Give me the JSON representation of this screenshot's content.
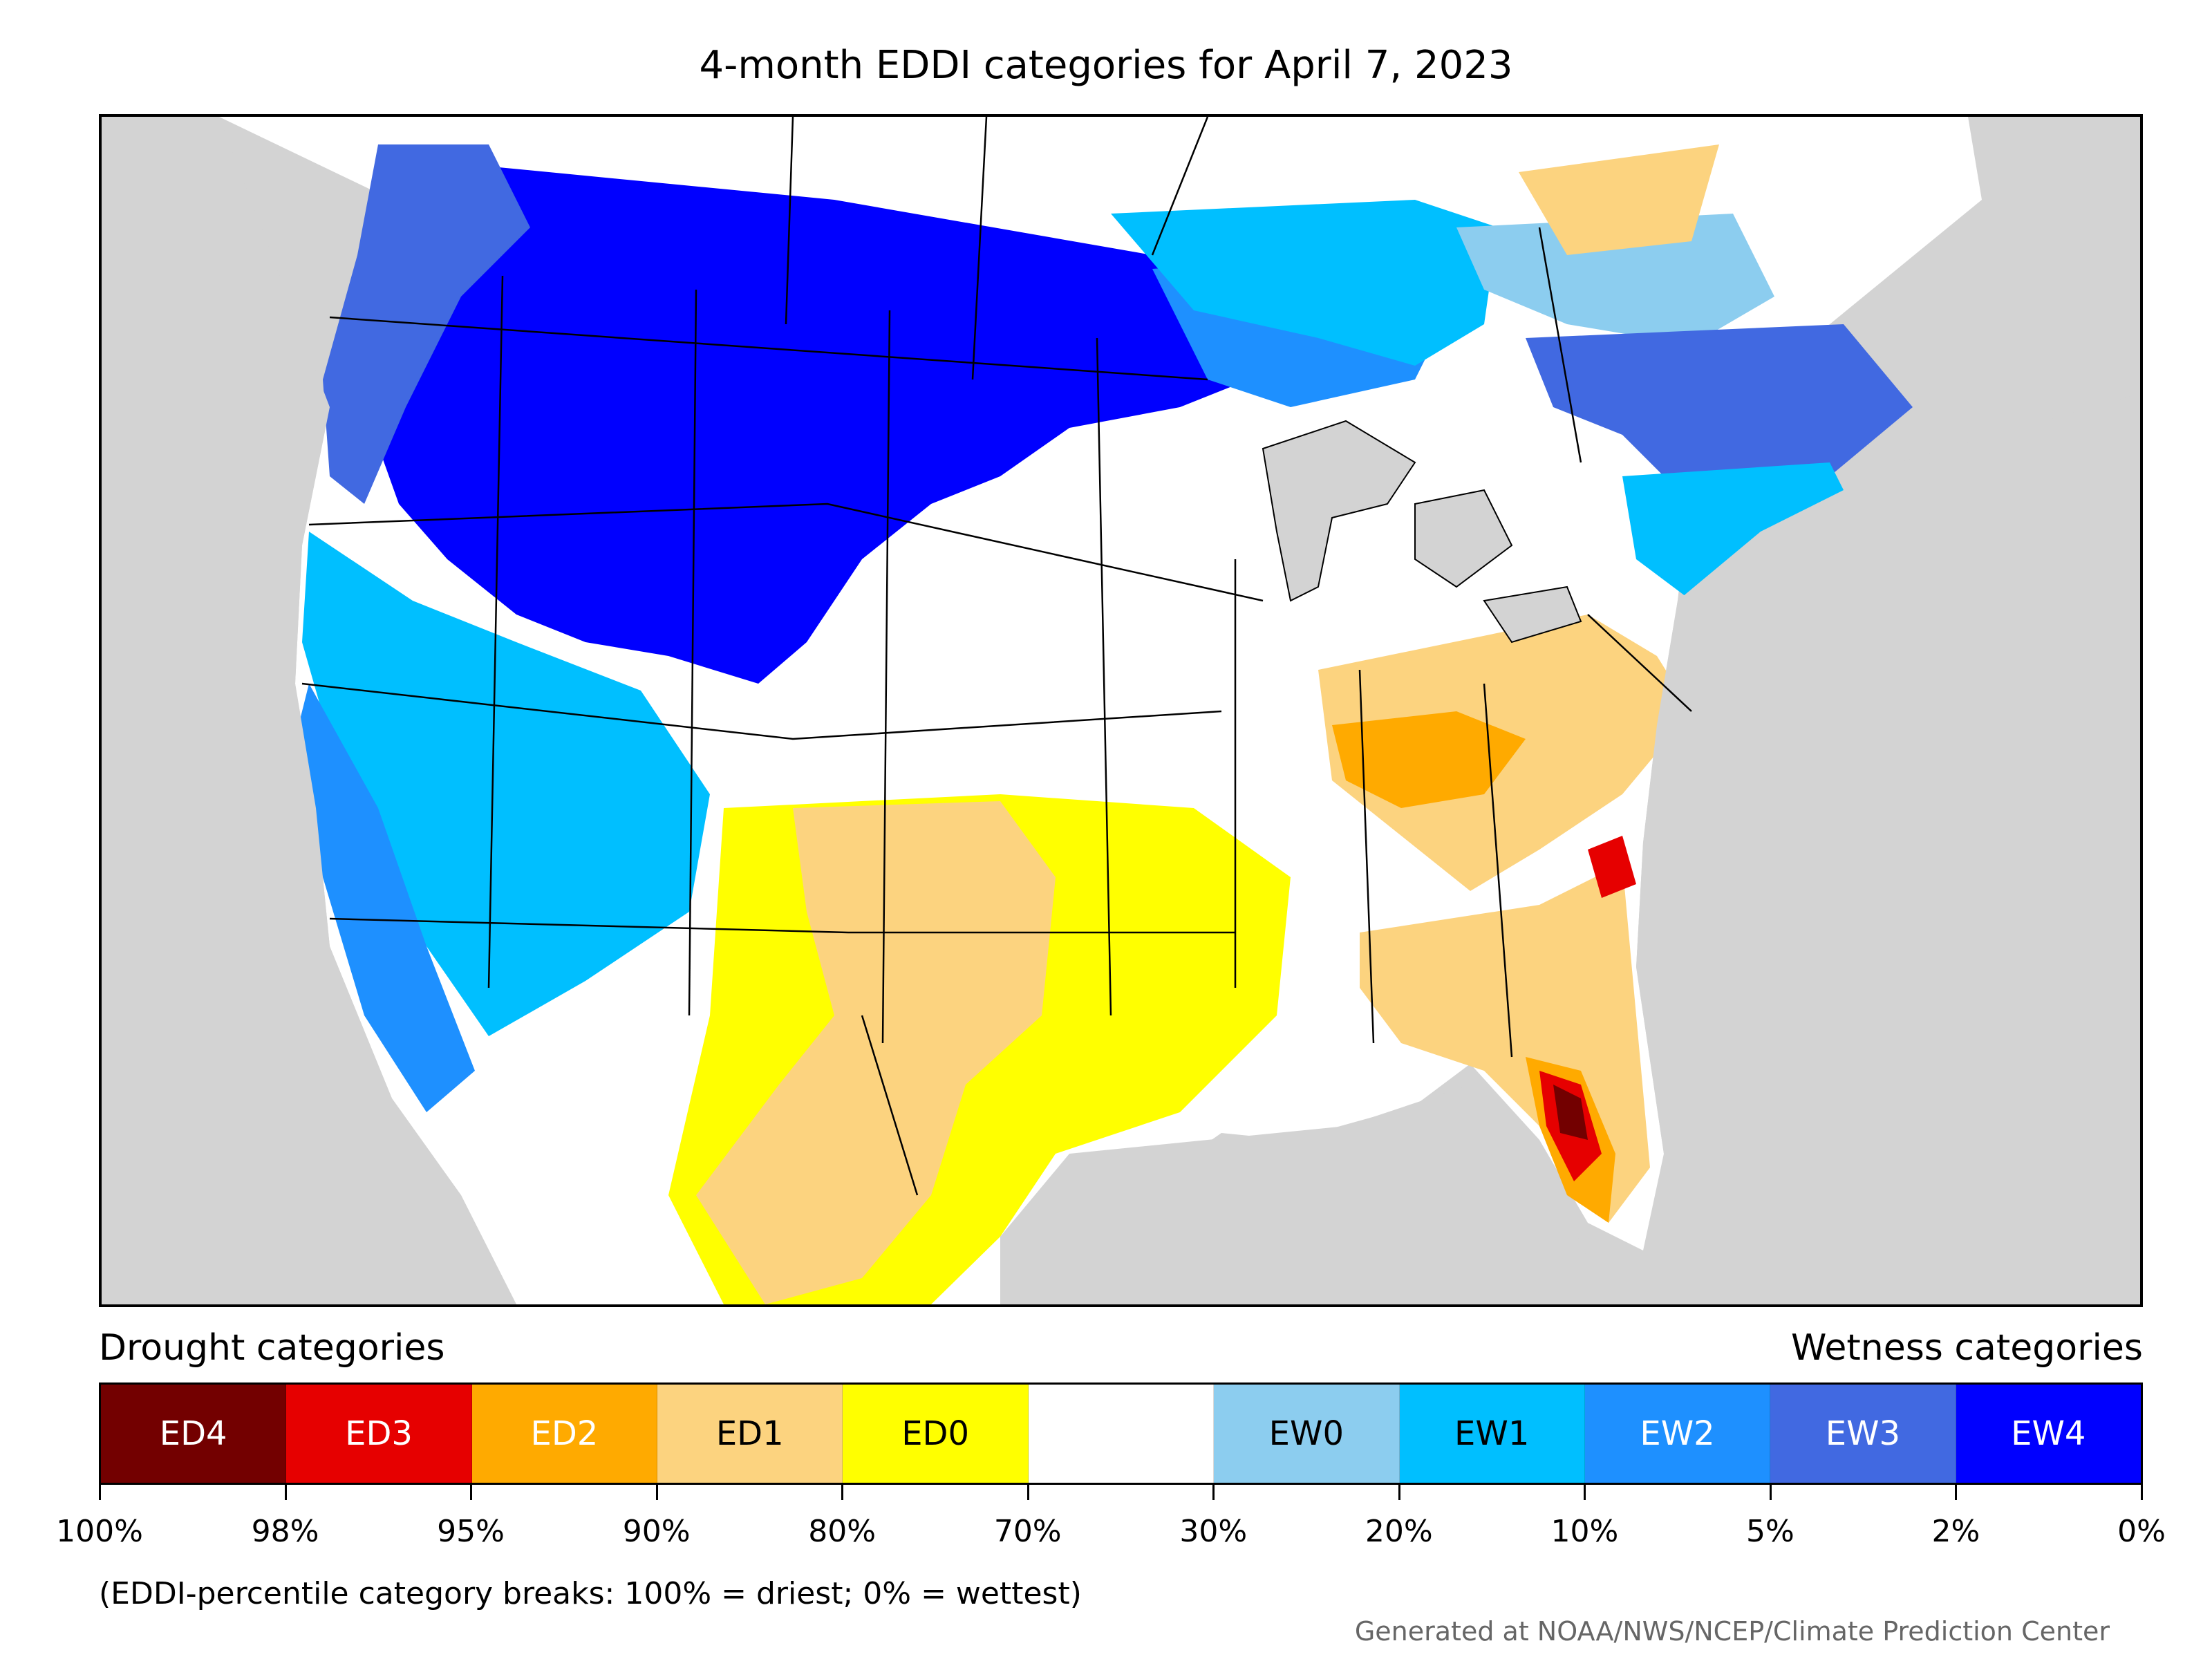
{
  "title": "4-month EDDI categories for April 7, 2023",
  "legend": {
    "drought_heading": "Drought categories",
    "wetness_heading": "Wetness categories",
    "categories": [
      {
        "label": "ED4",
        "color": "#730000",
        "text_color": "#ffffff"
      },
      {
        "label": "ED3",
        "color": "#e60000",
        "text_color": "#ffffff"
      },
      {
        "label": "ED2",
        "color": "#ffaa00",
        "text_color": "#ffffff"
      },
      {
        "label": "ED1",
        "color": "#fcd37f",
        "text_color": "#000000"
      },
      {
        "label": "ED0",
        "color": "#ffff00",
        "text_color": "#000000"
      },
      {
        "label": "",
        "color": "#ffffff",
        "text_color": "#000000"
      },
      {
        "label": "EW0",
        "color": "#8ccdef",
        "text_color": "#000000"
      },
      {
        "label": "EW1",
        "color": "#00bfff",
        "text_color": "#000000"
      },
      {
        "label": "EW2",
        "color": "#1e90ff",
        "text_color": "#ffffff"
      },
      {
        "label": "EW3",
        "color": "#4169e1",
        "text_color": "#ffffff"
      },
      {
        "label": "EW4",
        "color": "#0000ff",
        "text_color": "#ffffff"
      }
    ],
    "ticks": [
      "100%",
      "98%",
      "95%",
      "90%",
      "80%",
      "70%",
      "30%",
      "20%",
      "10%",
      "5%",
      "2%",
      "0%"
    ]
  },
  "note": "(EDDI-percentile category breaks: 100% = driest; 0% = wettest)",
  "credit": "Generated at NOAA/NWS/NCEP/Climate Prediction Center",
  "colors": {
    "ocean_land_outside": "#d3d3d3",
    "border": "#000000"
  }
}
